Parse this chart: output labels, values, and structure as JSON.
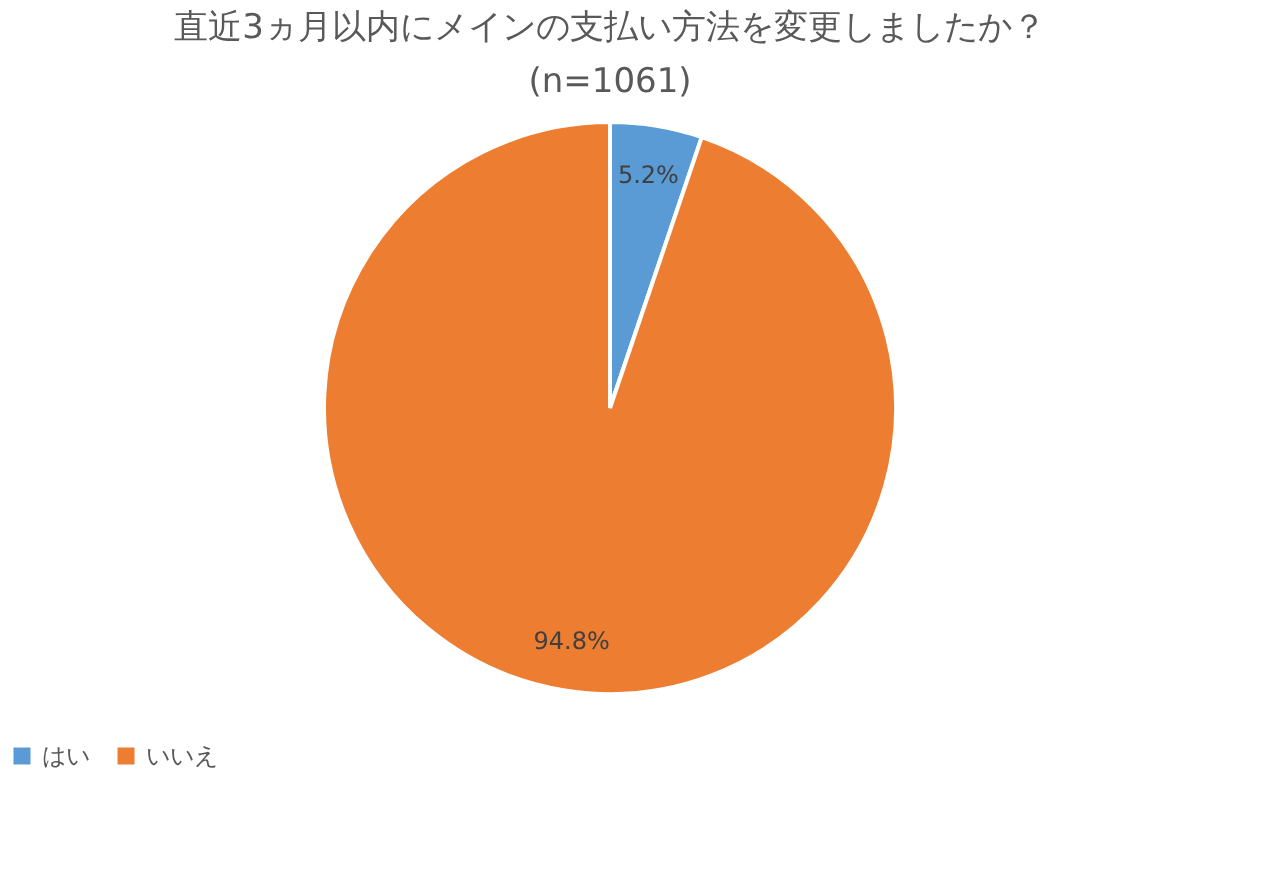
{
  "chart_data": {
    "type": "pie",
    "title": "直近3ヵ月以内にメインの支払い方法を変更しましたか？",
    "subtitle": "(n=1061)",
    "categories": [
      "はい",
      "いいえ"
    ],
    "values": [
      5.2,
      94.8
    ],
    "colors": [
      "#5b9bd5",
      "#ed7d31"
    ],
    "value_labels": [
      "5.2%",
      "94.8%"
    ],
    "legend": "bottom"
  }
}
